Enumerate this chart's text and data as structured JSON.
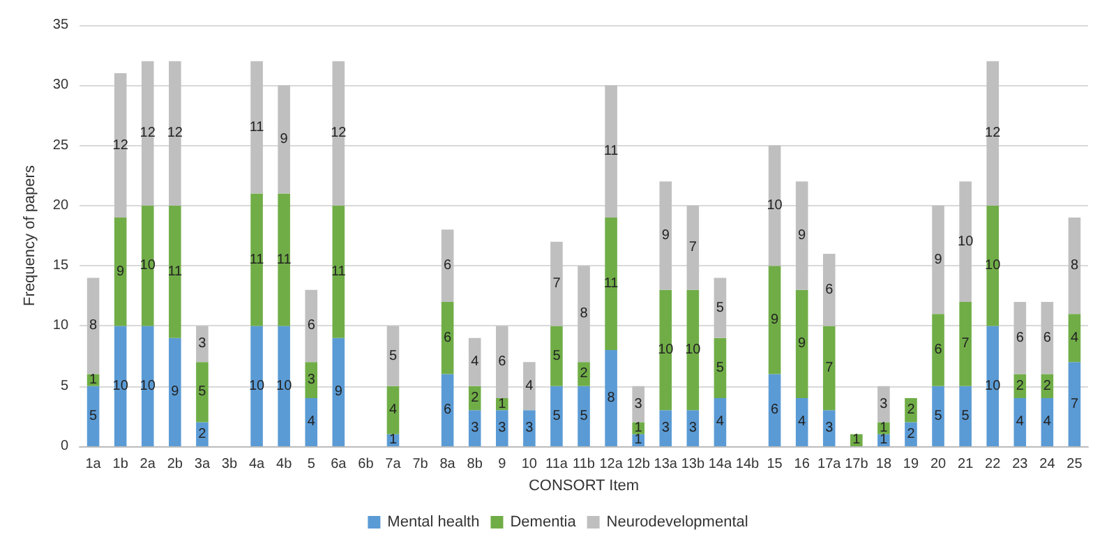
{
  "chart_data": {
    "type": "bar",
    "stacked": true,
    "xlabel": "CONSORT Item",
    "ylabel": "Frequency of papers",
    "categories": [
      "1a",
      "1b",
      "2a",
      "2b",
      "3a",
      "3b",
      "4a",
      "4b",
      "5",
      "6a",
      "6b",
      "7a",
      "7b",
      "8a",
      "8b",
      "9",
      "10",
      "11a",
      "11b",
      "12a",
      "12b",
      "13a",
      "13b",
      "14a",
      "14b",
      "15",
      "16",
      "17a",
      "17b",
      "18",
      "19",
      "20",
      "21",
      "22",
      "23",
      "24",
      "25"
    ],
    "series": [
      {
        "name": "Mental health",
        "color": "#5b9bd5",
        "values": [
          5,
          10,
          10,
          9,
          2,
          0,
          10,
          10,
          4,
          9,
          0,
          1,
          0,
          6,
          3,
          3,
          3,
          5,
          5,
          8,
          1,
          3,
          3,
          4,
          0,
          6,
          4,
          3,
          0,
          1,
          2,
          5,
          5,
          10,
          4,
          4,
          7
        ],
        "value_labels": [
          "5",
          "10",
          "10",
          "9",
          "2",
          null,
          "10",
          "10",
          "4",
          "9",
          null,
          "1",
          null,
          "6",
          "3",
          "3",
          "3",
          "5",
          "5",
          "8",
          "1",
          "3",
          "3",
          "4",
          null,
          "6",
          "4",
          "3",
          null,
          "1",
          "2",
          "5",
          "5",
          "10",
          "4",
          "4",
          "7"
        ]
      },
      {
        "name": "Dementia",
        "color": "#70ad47",
        "values": [
          1,
          9,
          10,
          11,
          5,
          0,
          11,
          11,
          3,
          11,
          0,
          4,
          0,
          6,
          2,
          1,
          0,
          5,
          2,
          11,
          1,
          10,
          10,
          5,
          0,
          9,
          9,
          7,
          1,
          1,
          2,
          6,
          7,
          10,
          2,
          2,
          4
        ],
        "value_labels": [
          "1",
          "9",
          "10",
          "11",
          "5",
          null,
          "11",
          "11",
          "3",
          "11",
          null,
          "4",
          null,
          "6",
          "2",
          "1",
          null,
          "5",
          "2",
          "11",
          "1",
          "10",
          "10",
          "5",
          null,
          "9",
          "9",
          "7",
          "1",
          "1",
          "2",
          "6",
          "7",
          "10",
          "2",
          "2",
          "4"
        ]
      },
      {
        "name": "Neurodevelopmental",
        "color": "#bfbfbf",
        "values": [
          8,
          12,
          12,
          12,
          3,
          0,
          11,
          9,
          6,
          12,
          0,
          5,
          0,
          6,
          4,
          6,
          4,
          7,
          8,
          11,
          3,
          9,
          7,
          5,
          0,
          10,
          9,
          6,
          0,
          3,
          0,
          9,
          10,
          12,
          6,
          6,
          8
        ],
        "value_labels": [
          "8",
          "12",
          "12",
          "12",
          "3",
          null,
          "11",
          "9",
          "6",
          "12",
          null,
          "5",
          null,
          "6",
          "4",
          "6",
          "4",
          "7",
          "8",
          "11",
          "3",
          "9",
          "7",
          "5",
          null,
          "10",
          "9",
          "6",
          null,
          "3",
          null,
          "9",
          "10",
          "12",
          "6",
          "6",
          "8"
        ]
      }
    ],
    "ylim": [
      0,
      35
    ],
    "yticks": [
      0,
      5,
      10,
      15,
      20,
      25,
      30,
      35
    ],
    "grid": "y",
    "legend": "bottom"
  }
}
